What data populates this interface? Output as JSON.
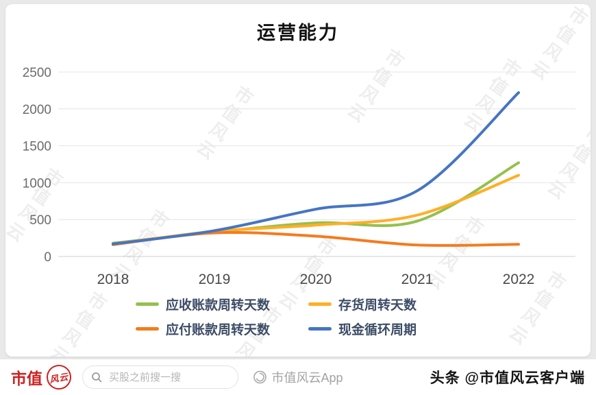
{
  "watermark": {
    "text": "市值风云"
  },
  "chart_data": {
    "type": "line",
    "smooth": true,
    "title": "运营能力",
    "categories": [
      "2018",
      "2019",
      "2020",
      "2021",
      "2022"
    ],
    "series": [
      {
        "name": "应收账款周转天数",
        "color": "#97bf4d",
        "values": [
          180,
          330,
          455,
          480,
          1270
        ]
      },
      {
        "name": "存货周转天数",
        "color": "#ffaf26",
        "values": [
          170,
          340,
          425,
          560,
          1100
        ]
      },
      {
        "name": "应付账款周转天数",
        "color": "#f47b20",
        "values": [
          160,
          320,
          275,
          155,
          165
        ]
      },
      {
        "name": "现金循环周期",
        "color": "#4575c4",
        "values": [
          170,
          350,
          640,
          890,
          2220
        ]
      }
    ],
    "xlabel": "",
    "ylabel": "",
    "ylim": [
      0,
      2500
    ],
    "y_ticks": [
      0,
      500,
      1000,
      1500,
      2000,
      2500
    ],
    "grid": true,
    "legend_position": "bottom"
  },
  "footer": {
    "brand": "市值",
    "brand_seal": "风云",
    "search_placeholder": "买股之前搜一搜",
    "center_watermark": "市值风云App",
    "byline": "头条 @市值风云客户端"
  }
}
